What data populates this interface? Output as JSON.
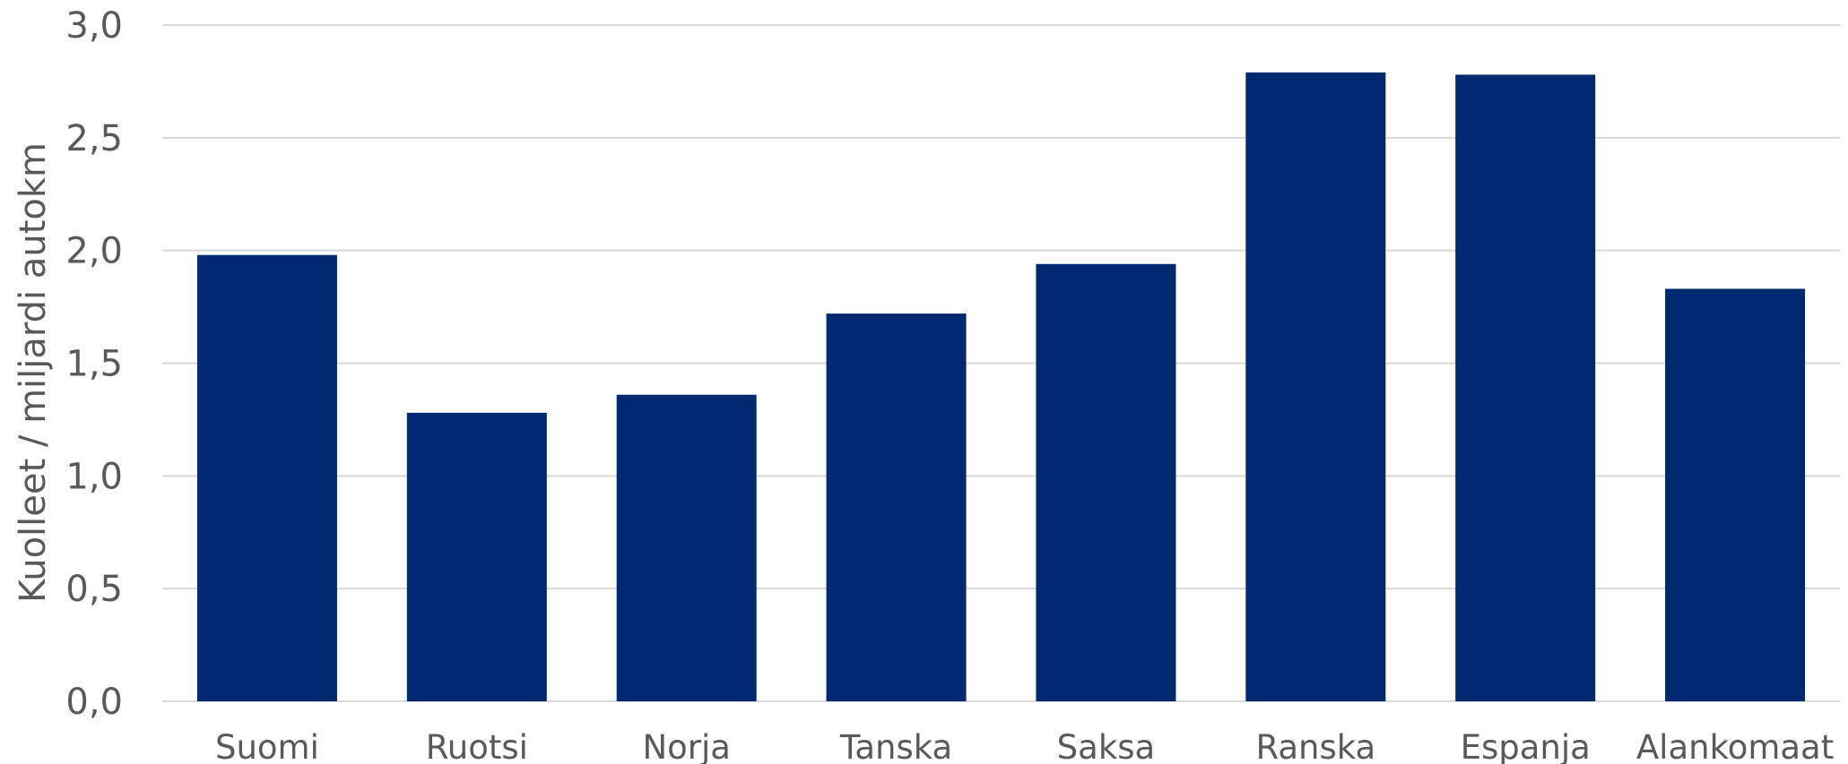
{
  "chart_data": {
    "type": "bar",
    "title": "",
    "xlabel": "",
    "ylabel": "Kuolleet / miljardi autokm",
    "categories": [
      "Suomi",
      "Ruotsi",
      "Norja",
      "Tanska",
      "Saksa",
      "Ranska",
      "Espanja",
      "Alankomaat"
    ],
    "values": [
      1.98,
      1.28,
      1.36,
      1.72,
      1.94,
      2.79,
      2.78,
      1.83
    ],
    "ylim": [
      0,
      3.0
    ],
    "yticks": [
      0,
      0.5,
      1.0,
      1.5,
      2.0,
      2.5,
      3.0
    ],
    "ytick_labels": [
      "0,0",
      "0,5",
      "1,0",
      "1,5",
      "2,0",
      "2,5",
      "3,0"
    ],
    "grid": true,
    "legend": "none",
    "bar_color": "#002970"
  }
}
